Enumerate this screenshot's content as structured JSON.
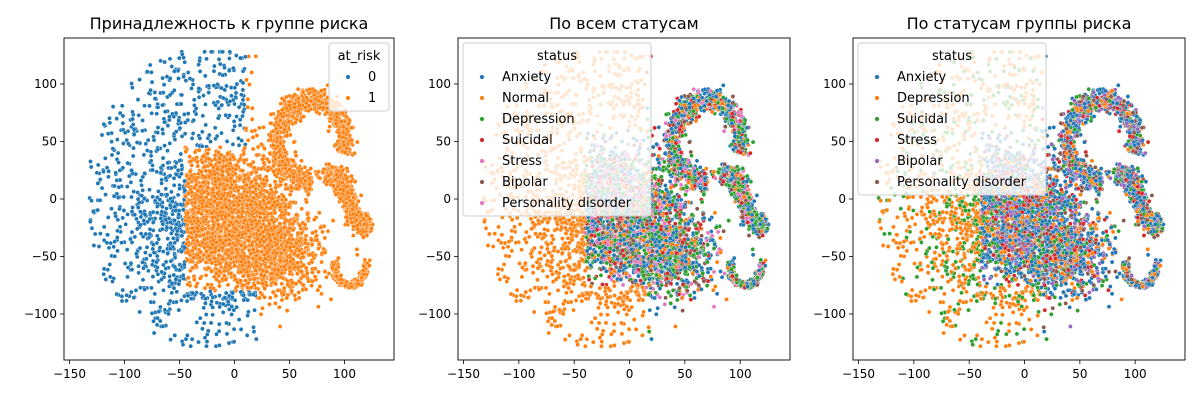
{
  "chart_data": [
    {
      "type": "scatter",
      "title": "Принадлежность к группе риска",
      "xlabel": "",
      "ylabel": "",
      "xlim": [
        -155,
        145
      ],
      "ylim": [
        -140,
        140
      ],
      "xticks": [
        -150,
        -100,
        -50,
        0,
        50,
        100
      ],
      "yticks": [
        -100,
        -50,
        0,
        50,
        100
      ],
      "legend": {
        "title": "at_risk",
        "position": "top-right"
      },
      "series": [
        {
          "name": "0",
          "color": "#1f77b4"
        },
        {
          "name": "1",
          "color": "#ff7f0e"
        }
      ]
    },
    {
      "type": "scatter",
      "title": "По всем статусам",
      "xlabel": "",
      "ylabel": "",
      "xlim": [
        -155,
        145
      ],
      "ylim": [
        -140,
        140
      ],
      "xticks": [
        -150,
        -100,
        -50,
        0,
        50,
        100
      ],
      "yticks": [
        -100,
        -50,
        0,
        50,
        100
      ],
      "legend": {
        "title": "status",
        "position": "top-left"
      },
      "series": [
        {
          "name": "Anxiety",
          "color": "#1f77b4"
        },
        {
          "name": "Normal",
          "color": "#ff7f0e"
        },
        {
          "name": "Depression",
          "color": "#2ca02c"
        },
        {
          "name": "Suicidal",
          "color": "#d62728"
        },
        {
          "name": "Stress",
          "color": "#e377c2"
        },
        {
          "name": "Bipolar",
          "color": "#8c564b"
        },
        {
          "name": "Personality disorder",
          "color": "#e377c2"
        }
      ]
    },
    {
      "type": "scatter",
      "title": "По статусам группы риска",
      "xlabel": "",
      "ylabel": "",
      "xlim": [
        -155,
        145
      ],
      "ylim": [
        -140,
        140
      ],
      "xticks": [
        -150,
        -100,
        -50,
        0,
        50,
        100
      ],
      "yticks": [
        -100,
        -50,
        0,
        50,
        100
      ],
      "legend": {
        "title": "status",
        "position": "top-left"
      },
      "series": [
        {
          "name": "Anxiety",
          "color": "#1f77b4"
        },
        {
          "name": "Depression",
          "color": "#ff7f0e"
        },
        {
          "name": "Suicidal",
          "color": "#2ca02c"
        },
        {
          "name": "Stress",
          "color": "#d62728"
        },
        {
          "name": "Bipolar",
          "color": "#9467bd"
        },
        {
          "name": "Personality disorder",
          "color": "#8c564b"
        }
      ]
    }
  ]
}
